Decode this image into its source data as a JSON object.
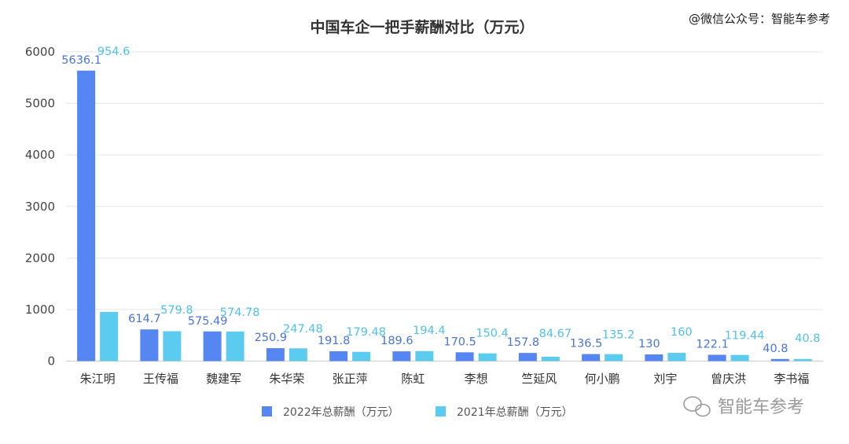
{
  "chart_data": {
    "type": "bar",
    "title": "中国车企一把手薪酬对比（万元）",
    "categories": [
      "朱江明",
      "王传福",
      "魏建军",
      "朱华荣",
      "张正萍",
      "陈虹",
      "李想",
      "竺延风",
      "何小鹏",
      "刘宇",
      "曾庆洪",
      "李书福"
    ],
    "series": [
      {
        "name": "2022年总薪酬（万元）",
        "color": "#5586f2",
        "values": [
          5636.1,
          614.7,
          575.49,
          250.9,
          191.8,
          189.6,
          170.5,
          157.8,
          136.5,
          130,
          122.1,
          40.8
        ],
        "labels": [
          "5636.1",
          "614.7",
          "575.49",
          "250.9",
          "191.8",
          "189.6",
          "170.5",
          "157.8",
          "136.5",
          "130",
          "122.1",
          "40.8"
        ]
      },
      {
        "name": "2021年总薪酬（万元）",
        "color": "#5ccbf0",
        "values": [
          954.6,
          579.8,
          574.78,
          247.48,
          179.48,
          194.4,
          150.4,
          84.67,
          135.2,
          160,
          119.44,
          40.8
        ],
        "labels": [
          "954.6",
          "579.8",
          "574.78",
          "247.48",
          "179.48",
          "194.4",
          "150.4",
          "84.67",
          "135.2",
          "160",
          "119.44",
          "40.8"
        ]
      }
    ],
    "yticks": [
      "0",
      "1000",
      "2000",
      "3000",
      "4000",
      "5000",
      "6000"
    ],
    "ylim": [
      0,
      6000
    ],
    "grid": true,
    "legend_position": "bottom-center",
    "label_colors": {
      "series0": "#4a74d8",
      "series1": "#4fc1ea"
    }
  },
  "watermark_top": "@微信公众号：智能车参考",
  "watermark_bottom": "智能车参考"
}
